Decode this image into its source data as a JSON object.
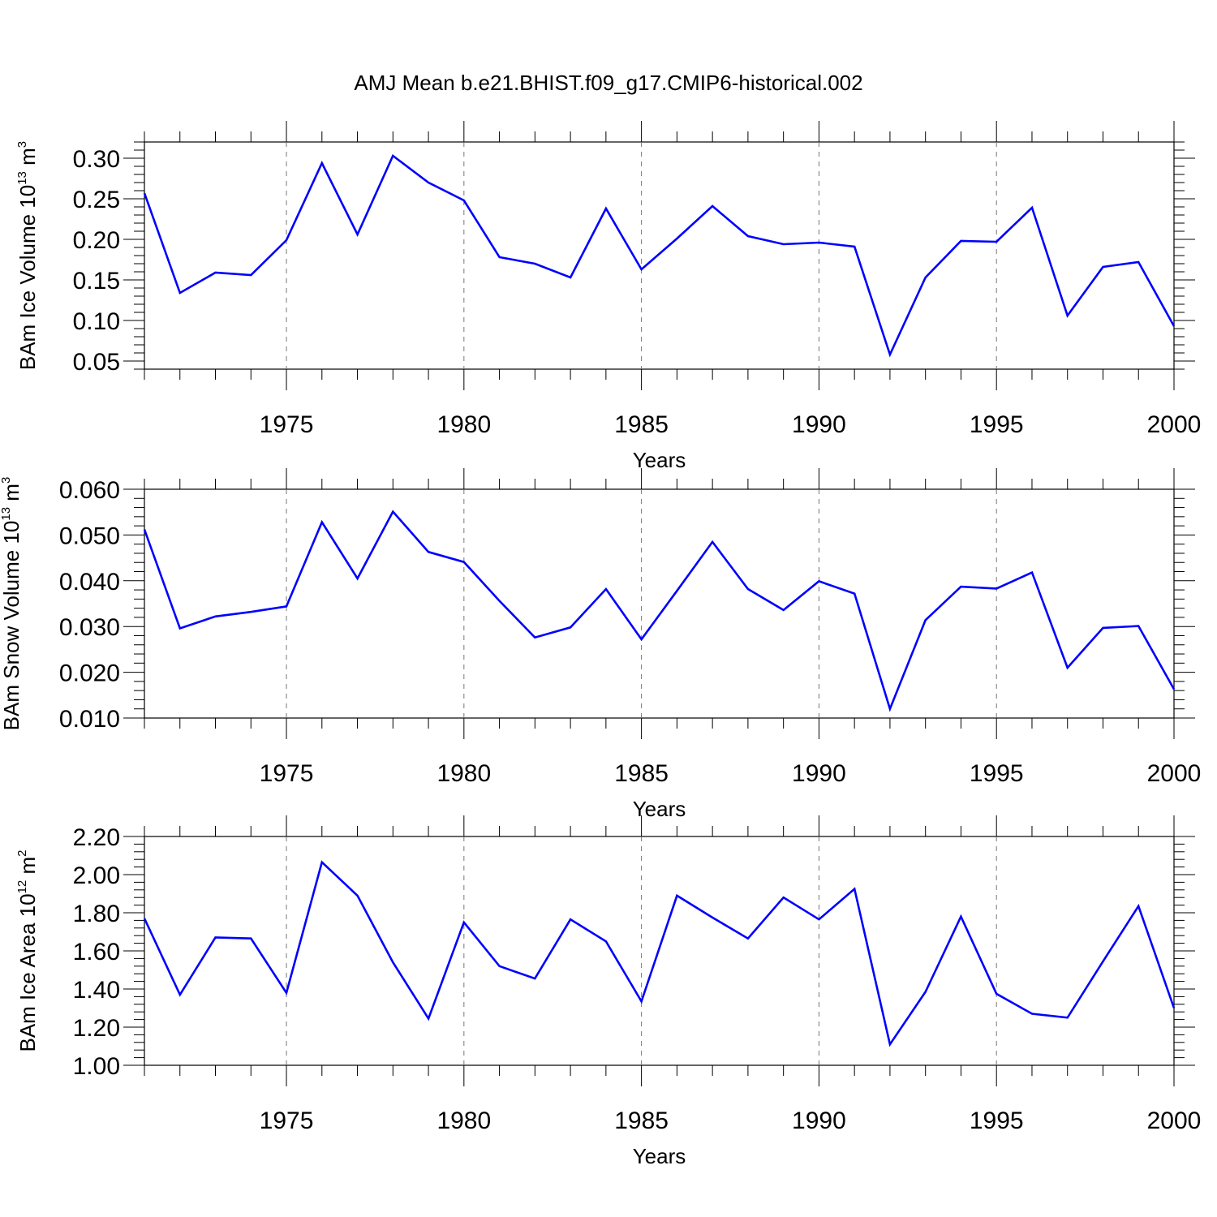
{
  "chart_data": [
    {
      "type": "line",
      "title": "AMJ Mean b.e21.BHIST.f09_g17.CMIP6-historical.002",
      "xlabel": "Years",
      "ylabel": {
        "text": "BAm Ice Volume 10",
        "exp": "13",
        "unit": " m",
        "unit_exp": "3"
      },
      "xlim": [
        1971,
        2000
      ],
      "ylim": [
        0.04,
        0.32
      ],
      "x_ticks": [
        "1975",
        "1980",
        "1985",
        "1990",
        "1995",
        "2000"
      ],
      "y_ticks": [
        "0.05",
        "0.10",
        "0.15",
        "0.20",
        "0.25",
        "0.30"
      ],
      "grid": "vertical dashed at major x ticks",
      "color": "#0000ff",
      "series": [
        {
          "x": [
            1971,
            1972,
            1973,
            1974,
            1975,
            1976,
            1977,
            1978,
            1979,
            1980,
            1981,
            1982,
            1983,
            1984,
            1985,
            1986,
            1987,
            1988,
            1989,
            1990,
            1991,
            1992,
            1993,
            1994,
            1995,
            1996,
            1997,
            1998,
            1999,
            2000
          ],
          "y": [
            0.257,
            0.134,
            0.159,
            0.156,
            0.199,
            0.294,
            0.206,
            0.303,
            0.27,
            0.248,
            0.178,
            0.17,
            0.153,
            0.238,
            0.163,
            0.201,
            0.241,
            0.204,
            0.194,
            0.196,
            0.191,
            0.058,
            0.153,
            0.198,
            0.197,
            0.239,
            0.106,
            0.166,
            0.172,
            0.093
          ]
        }
      ]
    },
    {
      "type": "line",
      "title": "",
      "xlabel": "Years",
      "ylabel": {
        "text": "BAm Snow Volume 10",
        "exp": "13",
        "unit": " m",
        "unit_exp": "3"
      },
      "xlim": [
        1971,
        2000
      ],
      "ylim": [
        0.01,
        0.06
      ],
      "x_ticks": [
        "1975",
        "1980",
        "1985",
        "1990",
        "1995",
        "2000"
      ],
      "y_ticks": [
        "0.010",
        "0.020",
        "0.030",
        "0.040",
        "0.050",
        "0.060"
      ],
      "grid": "vertical dashed at major x ticks",
      "color": "#0000ff",
      "series": [
        {
          "x": [
            1971,
            1972,
            1973,
            1974,
            1975,
            1976,
            1977,
            1978,
            1979,
            1980,
            1981,
            1982,
            1983,
            1984,
            1985,
            1986,
            1987,
            1988,
            1989,
            1990,
            1991,
            1992,
            1993,
            1994,
            1995,
            1996,
            1997,
            1998,
            1999,
            2000
          ],
          "y": [
            0.0512,
            0.0296,
            0.0322,
            0.0332,
            0.0344,
            0.0528,
            0.0405,
            0.0551,
            0.0463,
            0.0441,
            0.0356,
            0.0276,
            0.0298,
            0.0382,
            0.0272,
            0.0378,
            0.0485,
            0.0382,
            0.0336,
            0.0399,
            0.0372,
            0.012,
            0.0314,
            0.0387,
            0.0383,
            0.0418,
            0.021,
            0.0297,
            0.0301,
            0.0163
          ]
        }
      ]
    },
    {
      "type": "line",
      "title": "",
      "xlabel": "Years",
      "ylabel": {
        "text": "BAm Ice Area 10",
        "exp": "12",
        "unit": " m",
        "unit_exp": "2"
      },
      "xlim": [
        1971,
        2000
      ],
      "ylim": [
        1.0,
        2.2
      ],
      "x_ticks": [
        "1975",
        "1980",
        "1985",
        "1990",
        "1995",
        "2000"
      ],
      "y_ticks": [
        "1.00",
        "1.20",
        "1.40",
        "1.60",
        "1.80",
        "2.00",
        "2.20"
      ],
      "grid": "vertical dashed at major x ticks",
      "color": "#0000ff",
      "series": [
        {
          "x": [
            1971,
            1972,
            1973,
            1974,
            1975,
            1976,
            1977,
            1978,
            1979,
            1980,
            1981,
            1982,
            1983,
            1984,
            1985,
            1986,
            1987,
            1988,
            1989,
            1990,
            1991,
            1992,
            1993,
            1994,
            1995,
            1996,
            1997,
            1998,
            1999,
            2000
          ],
          "y": [
            1.77,
            1.37,
            1.67,
            1.665,
            1.38,
            2.065,
            1.89,
            1.54,
            1.245,
            1.75,
            1.52,
            1.455,
            1.765,
            1.65,
            1.335,
            1.89,
            1.775,
            1.665,
            1.88,
            1.765,
            1.925,
            1.11,
            1.385,
            1.78,
            1.375,
            1.27,
            1.25,
            1.545,
            1.835,
            1.3
          ]
        }
      ]
    }
  ]
}
